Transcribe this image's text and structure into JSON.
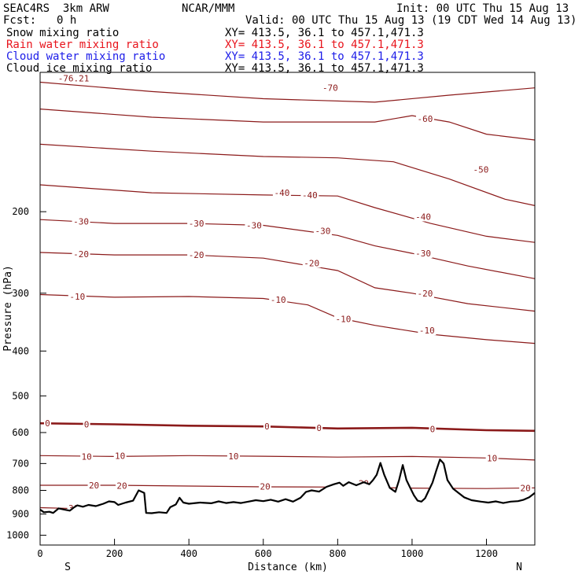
{
  "header": {
    "model": "SEAC4RS  3km ARW",
    "org": "NCAR/MMM",
    "init": "Init: 00 UTC Thu 15 Aug 13",
    "fcst_label": "Fcst:",
    "fcst_value": "0 h",
    "valid": "Valid: 00 UTC Thu 15 Aug 13 (19 CDT Wed 14 Aug 13)"
  },
  "fields": [
    {
      "name": "Snow mixing ratio",
      "xy": "XY= 413.5, 36.1 to 457.1,471.3",
      "color": "#000000"
    },
    {
      "name": "Rain water mixing ratio",
      "xy": "XY= 413.5, 36.1 to 457.1,471.3",
      "color": "#e8141c"
    },
    {
      "name": "Cloud water mixing ratio",
      "xy": "XY= 413.5, 36.1 to 457.1,471.3",
      "color": "#1c1ce8"
    },
    {
      "name": "Cloud ice mixing ratio",
      "xy": "XY= 413.5, 36.1 to 457.1,471.3",
      "color": "#000000"
    }
  ],
  "chart_data": {
    "type": "line",
    "xlabel": "Distance (km)",
    "ylabel": "Pressure (hPa)",
    "xlim": [
      0,
      1330
    ],
    "ylim": [
      1050,
      100
    ],
    "y_scale": "log",
    "x_ticks": [
      0,
      200,
      400,
      600,
      800,
      1000,
      1200
    ],
    "y_ticks": [
      200,
      300,
      400,
      500,
      600,
      700,
      800,
      900,
      1000
    ],
    "x_end_labels": {
      "left": "S",
      "right": "N"
    },
    "contour_color": "#8b1a1a",
    "isotherms": [
      {
        "value": -70,
        "p": [
          [
            0,
            105
          ],
          [
            300,
            110
          ],
          [
            600,
            114
          ],
          [
            900,
            116
          ],
          [
            1100,
            112
          ],
          [
            1330,
            108
          ]
        ]
      },
      {
        "value": -60,
        "p": [
          [
            0,
            120
          ],
          [
            300,
            125
          ],
          [
            600,
            128
          ],
          [
            900,
            128
          ],
          [
            1000,
            124
          ],
          [
            1100,
            128
          ],
          [
            1200,
            136
          ],
          [
            1330,
            140
          ]
        ]
      },
      {
        "value": -50,
        "p": [
          [
            0,
            143
          ],
          [
            300,
            148
          ],
          [
            600,
            152
          ],
          [
            800,
            153
          ],
          [
            950,
            156
          ],
          [
            1100,
            170
          ],
          [
            1250,
            188
          ],
          [
            1330,
            194
          ]
        ]
      },
      {
        "value": -40,
        "p": [
          [
            0,
            175
          ],
          [
            300,
            182
          ],
          [
            600,
            184
          ],
          [
            800,
            185
          ],
          [
            900,
            196
          ],
          [
            1050,
            212
          ],
          [
            1200,
            226
          ],
          [
            1330,
            233
          ]
        ]
      },
      {
        "value": -30,
        "p": [
          [
            0,
            208
          ],
          [
            200,
            212
          ],
          [
            400,
            212
          ],
          [
            600,
            214
          ],
          [
            800,
            225
          ],
          [
            900,
            237
          ],
          [
            1000,
            246
          ],
          [
            1150,
            262
          ],
          [
            1330,
            279
          ]
        ]
      },
      {
        "value": -20,
        "p": [
          [
            0,
            245
          ],
          [
            200,
            248
          ],
          [
            400,
            248
          ],
          [
            600,
            252
          ],
          [
            800,
            268
          ],
          [
            900,
            292
          ],
          [
            1000,
            300
          ],
          [
            1150,
            316
          ],
          [
            1330,
            328
          ]
        ]
      },
      {
        "value": -10,
        "p": [
          [
            0,
            302
          ],
          [
            200,
            306
          ],
          [
            400,
            305
          ],
          [
            600,
            308
          ],
          [
            720,
            318
          ],
          [
            800,
            339
          ],
          [
            900,
            352
          ],
          [
            1050,
            368
          ],
          [
            1200,
            378
          ],
          [
            1330,
            385
          ]
        ]
      },
      {
        "value": 0,
        "p": [
          [
            0,
            573
          ],
          [
            200,
            576
          ],
          [
            400,
            580
          ],
          [
            600,
            582
          ],
          [
            800,
            588
          ],
          [
            1000,
            586
          ],
          [
            1200,
            593
          ],
          [
            1330,
            595
          ]
        ]
      },
      {
        "value": 10,
        "p": [
          [
            0,
            673
          ],
          [
            200,
            676
          ],
          [
            400,
            673
          ],
          [
            600,
            675
          ],
          [
            800,
            678
          ],
          [
            1000,
            676
          ],
          [
            1200,
            681
          ],
          [
            1330,
            688
          ]
        ]
      },
      {
        "value": 20,
        "p": [
          [
            0,
            780
          ],
          [
            200,
            780
          ],
          [
            400,
            783
          ],
          [
            600,
            786
          ],
          [
            800,
            787
          ],
          [
            1000,
            791
          ],
          [
            1200,
            793
          ],
          [
            1330,
            790
          ]
        ]
      },
      {
        "value": 30,
        "p": [
          [
            0,
            872
          ],
          [
            100,
            876
          ],
          [
            200,
            880
          ]
        ]
      }
    ],
    "contour_labels": [
      {
        "text": "-76.21",
        "x": 90,
        "p": 103
      },
      {
        "text": "-70",
        "x": 780,
        "p": 108
      },
      {
        "text": "-60",
        "x": 1035,
        "p": 126
      },
      {
        "text": "-50",
        "x": 1185,
        "p": 162
      },
      {
        "text": "-40",
        "x": 650,
        "p": 182
      },
      {
        "text": "-40",
        "x": 725,
        "p": 184
      },
      {
        "text": "-40",
        "x": 1030,
        "p": 205
      },
      {
        "text": "-30",
        "x": 110,
        "p": 210
      },
      {
        "text": "-30",
        "x": 420,
        "p": 212
      },
      {
        "text": "-30",
        "x": 575,
        "p": 214
      },
      {
        "text": "-30",
        "x": 760,
        "p": 220
      },
      {
        "text": "-30",
        "x": 1030,
        "p": 246
      },
      {
        "text": "-20",
        "x": 110,
        "p": 247
      },
      {
        "text": "-20",
        "x": 420,
        "p": 248
      },
      {
        "text": "-20",
        "x": 730,
        "p": 258
      },
      {
        "text": "-20",
        "x": 1035,
        "p": 300
      },
      {
        "text": "-10",
        "x": 100,
        "p": 305
      },
      {
        "text": "-10",
        "x": 640,
        "p": 310
      },
      {
        "text": "-10",
        "x": 815,
        "p": 341
      },
      {
        "text": "-10",
        "x": 1040,
        "p": 361
      },
      {
        "text": "0",
        "x": 20,
        "p": 573
      },
      {
        "text": "0",
        "x": 125,
        "p": 576
      },
      {
        "text": "0",
        "x": 610,
        "p": 582
      },
      {
        "text": "0",
        "x": 750,
        "p": 586
      },
      {
        "text": "0",
        "x": 1055,
        "p": 590
      },
      {
        "text": "10",
        "x": 125,
        "p": 676
      },
      {
        "text": "10",
        "x": 215,
        "p": 673
      },
      {
        "text": "10",
        "x": 520,
        "p": 675
      },
      {
        "text": "10",
        "x": 1215,
        "p": 681
      },
      {
        "text": "20",
        "x": 145,
        "p": 780
      },
      {
        "text": "20",
        "x": 220,
        "p": 781
      },
      {
        "text": "20",
        "x": 605,
        "p": 785
      },
      {
        "text": "20",
        "x": 870,
        "p": 772
      },
      {
        "text": "20",
        "x": 1305,
        "p": 790
      },
      {
        "text": "30",
        "x": 90,
        "p": 874
      }
    ],
    "terrain": [
      [
        0,
        880
      ],
      [
        10,
        892
      ],
      [
        25,
        890
      ],
      [
        35,
        895
      ],
      [
        50,
        875
      ],
      [
        65,
        880
      ],
      [
        80,
        885
      ],
      [
        90,
        872
      ],
      [
        100,
        862
      ],
      [
        115,
        868
      ],
      [
        130,
        860
      ],
      [
        150,
        865
      ],
      [
        170,
        855
      ],
      [
        185,
        845
      ],
      [
        200,
        848
      ],
      [
        210,
        860
      ],
      [
        230,
        850
      ],
      [
        250,
        842
      ],
      [
        265,
        800
      ],
      [
        280,
        810
      ],
      [
        285,
        895
      ],
      [
        300,
        896
      ],
      [
        320,
        892
      ],
      [
        340,
        895
      ],
      [
        350,
        870
      ],
      [
        365,
        858
      ],
      [
        375,
        830
      ],
      [
        385,
        850
      ],
      [
        400,
        855
      ],
      [
        430,
        850
      ],
      [
        460,
        853
      ],
      [
        480,
        845
      ],
      [
        500,
        852
      ],
      [
        520,
        848
      ],
      [
        540,
        852
      ],
      [
        560,
        846
      ],
      [
        580,
        840
      ],
      [
        600,
        844
      ],
      [
        620,
        838
      ],
      [
        640,
        846
      ],
      [
        660,
        836
      ],
      [
        680,
        846
      ],
      [
        700,
        830
      ],
      [
        715,
        806
      ],
      [
        730,
        800
      ],
      [
        750,
        805
      ],
      [
        770,
        786
      ],
      [
        790,
        776
      ],
      [
        805,
        770
      ],
      [
        815,
        782
      ],
      [
        830,
        768
      ],
      [
        850,
        780
      ],
      [
        870,
        768
      ],
      [
        885,
        776
      ],
      [
        895,
        760
      ],
      [
        905,
        740
      ],
      [
        915,
        698
      ],
      [
        925,
        740
      ],
      [
        940,
        790
      ],
      [
        955,
        806
      ],
      [
        965,
        760
      ],
      [
        975,
        705
      ],
      [
        985,
        760
      ],
      [
        995,
        790
      ],
      [
        1005,
        820
      ],
      [
        1015,
        842
      ],
      [
        1025,
        846
      ],
      [
        1035,
        832
      ],
      [
        1045,
        800
      ],
      [
        1055,
        770
      ],
      [
        1065,
        725
      ],
      [
        1075,
        686
      ],
      [
        1085,
        700
      ],
      [
        1095,
        760
      ],
      [
        1110,
        793
      ],
      [
        1125,
        810
      ],
      [
        1140,
        828
      ],
      [
        1160,
        840
      ],
      [
        1185,
        846
      ],
      [
        1205,
        850
      ],
      [
        1225,
        845
      ],
      [
        1245,
        852
      ],
      [
        1265,
        846
      ],
      [
        1285,
        844
      ],
      [
        1300,
        838
      ],
      [
        1315,
        828
      ],
      [
        1330,
        810
      ]
    ]
  }
}
